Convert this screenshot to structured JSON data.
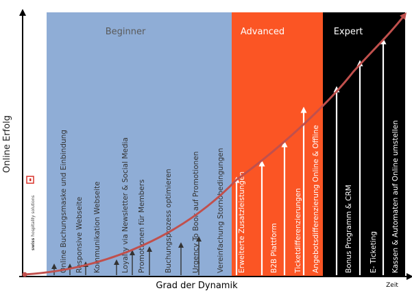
{
  "axes": {
    "y_label": "Online Erfolg",
    "x_label": "Grad der Dynamik",
    "x_end_label": "Zeit"
  },
  "logo": {
    "text_bold": "swiss",
    "text_rest": " hospitality solutions"
  },
  "zones": [
    {
      "label": "Beginner",
      "color": "#8fadd6",
      "label_color": "#5a5a5a"
    },
    {
      "label": "Advanced",
      "color": "#fb5524",
      "label_color": "#ffffff"
    },
    {
      "label": "Expert",
      "color": "#000000",
      "label_color": "#ffffff"
    }
  ],
  "curve_color": "#c0504d",
  "items": [
    {
      "label": "Online Buchungsmaske und Einbindung",
      "zone": "Beginner"
    },
    {
      "label": "Responsive Webseite",
      "zone": "Beginner"
    },
    {
      "label": "Kommunikation Webseite",
      "zone": "Beginner"
    },
    {
      "label": "Loyalty via Newsletter & Social Media",
      "zone": "Beginner"
    },
    {
      "label": "Promotionen für Members",
      "zone": "Beginner"
    },
    {
      "label": "Buchungsprozess optimieren",
      "zone": "Beginner"
    },
    {
      "label": "Urgency To Book auf Promotionen",
      "zone": "Beginner"
    },
    {
      "label": "Vereinfachung Stornobedingungen",
      "zone": "Beginner"
    },
    {
      "label": "Erweiterte Zusatzleistungen",
      "zone": "Advanced"
    },
    {
      "label": "B2B Plattform",
      "zone": "Advanced"
    },
    {
      "label": "Ticketdifferenzierungen",
      "zone": "Advanced"
    },
    {
      "label": "Angebotsdifferenzierung Online & Offline",
      "zone": "Advanced"
    },
    {
      "label": "Bonus Programm & CRM",
      "zone": "Expert"
    },
    {
      "label": "E- Ticketing",
      "zone": "Expert"
    },
    {
      "label": "Kassen & Automaten auf Online umstellen",
      "zone": "Expert"
    }
  ]
}
